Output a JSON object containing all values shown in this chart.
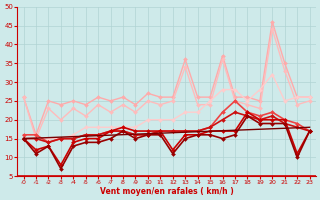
{
  "background_color": "#ceeaea",
  "grid_color": "#b0d4d4",
  "xlabel": "Vent moyen/en rafales ( km/h )",
  "xlabel_color": "#cc0000",
  "tick_color": "#cc0000",
  "spine_color": "#cc0000",
  "xlim": [
    -0.5,
    23.5
  ],
  "ylim": [
    5,
    50
  ],
  "yticks": [
    5,
    10,
    15,
    20,
    25,
    30,
    35,
    40,
    45,
    50
  ],
  "xticks": [
    0,
    1,
    2,
    3,
    4,
    5,
    6,
    7,
    8,
    9,
    10,
    11,
    12,
    13,
    14,
    15,
    16,
    17,
    18,
    19,
    20,
    21,
    22,
    23
  ],
  "series": [
    {
      "x": [
        0,
        1,
        2,
        3,
        4,
        5,
        6,
        7,
        8,
        9,
        10,
        11,
        12,
        13,
        14,
        15,
        16,
        17,
        18,
        19,
        20,
        21,
        22,
        23
      ],
      "y": [
        26,
        16,
        25,
        24,
        25,
        24,
        26,
        25,
        26,
        24,
        27,
        26,
        26,
        36,
        26,
        26,
        37,
        26,
        26,
        25,
        46,
        35,
        26,
        26
      ],
      "color": "#ffaaaa",
      "lw": 1.0,
      "marker": "D",
      "ms": 2.0
    },
    {
      "x": [
        0,
        1,
        2,
        3,
        4,
        5,
        6,
        7,
        8,
        9,
        10,
        11,
        12,
        13,
        14,
        15,
        16,
        17,
        18,
        19,
        20,
        21,
        22,
        23
      ],
      "y": [
        26,
        15,
        23,
        20,
        23,
        21,
        24,
        22,
        24,
        22,
        25,
        24,
        25,
        34,
        24,
        24,
        36,
        25,
        24,
        23,
        44,
        33,
        24,
        25
      ],
      "color": "#ffbbbb",
      "lw": 1.0,
      "marker": "D",
      "ms": 2.0
    },
    {
      "x": [
        0,
        1,
        2,
        3,
        4,
        5,
        6,
        7,
        8,
        9,
        10,
        11,
        12,
        13,
        14,
        15,
        16,
        17,
        18,
        19,
        20,
        21,
        22,
        23
      ],
      "y": [
        15,
        15,
        15,
        15,
        16,
        18,
        18,
        18,
        18,
        18,
        20,
        20,
        20,
        22,
        22,
        25,
        28,
        28,
        25,
        28,
        32,
        25,
        26,
        26
      ],
      "color": "#ffcccc",
      "lw": 1.0,
      "marker": "D",
      "ms": 2.0
    },
    {
      "x": [
        0,
        1,
        2,
        3,
        4,
        5,
        6,
        7,
        8,
        9,
        10,
        11,
        12,
        13,
        14,
        15,
        16,
        17,
        18,
        19,
        20,
        21,
        22,
        23
      ],
      "y": [
        16,
        16,
        14,
        15,
        15,
        16,
        16,
        17,
        17,
        16,
        16,
        17,
        17,
        17,
        17,
        18,
        22,
        25,
        22,
        21,
        22,
        20,
        19,
        17
      ],
      "color": "#ee4444",
      "lw": 1.2,
      "marker": "D",
      "ms": 2.0
    },
    {
      "x": [
        0,
        1,
        2,
        3,
        4,
        5,
        6,
        7,
        8,
        9,
        10,
        11,
        12,
        13,
        14,
        15,
        16,
        17,
        18,
        19,
        20,
        21,
        22,
        23
      ],
      "y": [
        15,
        15,
        14,
        15,
        15,
        16,
        16,
        17,
        17,
        16,
        16,
        17,
        17,
        17,
        17,
        18,
        20,
        22,
        21,
        20,
        21,
        19,
        18,
        17
      ],
      "color": "#cc1111",
      "lw": 1.2,
      "marker": "D",
      "ms": 2.0
    },
    {
      "x": [
        0,
        1,
        2,
        3,
        4,
        5,
        6,
        7,
        8,
        9,
        10,
        11,
        12,
        13,
        14,
        15,
        16,
        17,
        18,
        19,
        20,
        21,
        22,
        23
      ],
      "y": [
        15,
        12,
        13,
        8,
        14,
        15,
        15,
        17,
        18,
        17,
        17,
        17,
        12,
        16,
        16,
        17,
        17,
        17,
        22,
        20,
        20,
        20,
        11,
        17
      ],
      "color": "#cc0000",
      "lw": 1.2,
      "marker": "D",
      "ms": 2.0
    },
    {
      "x": [
        0,
        1,
        2,
        3,
        4,
        5,
        6,
        7,
        8,
        9,
        10,
        11,
        12,
        13,
        14,
        15,
        16,
        17,
        18,
        19,
        20,
        21,
        22,
        23
      ],
      "y": [
        15,
        11,
        13,
        7,
        13,
        14,
        14,
        15,
        17,
        15,
        16,
        16,
        11,
        15,
        16,
        16,
        15,
        16,
        21,
        19,
        19,
        19,
        10,
        17
      ],
      "color": "#990000",
      "lw": 1.2,
      "marker": "D",
      "ms": 2.0
    },
    {
      "x": [
        0,
        23
      ],
      "y": [
        15,
        18
      ],
      "color": "#770000",
      "lw": 1.0,
      "marker": null,
      "ms": 0
    }
  ]
}
